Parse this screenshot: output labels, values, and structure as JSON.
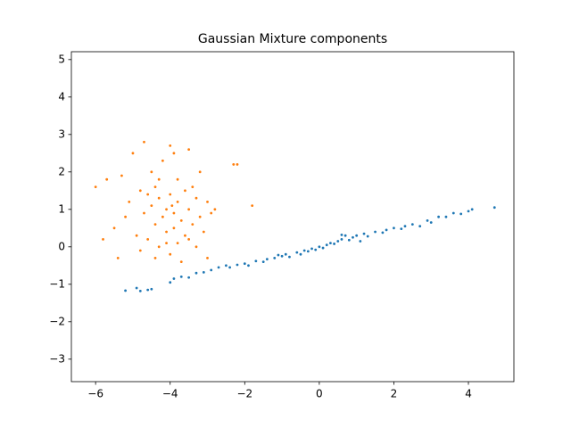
{
  "chart_data": {
    "type": "scatter",
    "title": "Gaussian Mixture components",
    "xlim": [
      -6.65,
      5.22
    ],
    "ylim": [
      -3.6,
      5.21
    ],
    "xticks": [
      {
        "value": -6,
        "label": "−6"
      },
      {
        "value": -4,
        "label": "−4"
      },
      {
        "value": -2,
        "label": "−2"
      },
      0,
      2,
      4
    ],
    "yticks": [
      {
        "value": -3,
        "label": "−3"
      },
      {
        "value": -2,
        "label": "−2"
      },
      {
        "value": -1,
        "label": "−1"
      },
      0,
      1,
      2,
      3,
      4,
      5
    ],
    "series": [
      {
        "color": "#1f77b4",
        "x": [
          -5.2,
          -4.9,
          -4.8,
          -4.6,
          -4.5,
          -4.0,
          -3.9,
          -3.7,
          -3.5,
          -3.3,
          -3.1,
          -2.9,
          -2.7,
          -2.5,
          -2.4,
          -2.2,
          -2.0,
          -1.9,
          -1.7,
          -1.5,
          -1.4,
          -1.2,
          -1.0,
          -0.9,
          -0.8,
          -0.6,
          -0.5,
          -0.4,
          -0.3,
          -0.2,
          -0.1,
          0.0,
          0.1,
          0.2,
          0.3,
          0.4,
          0.5,
          0.6,
          0.7,
          0.8,
          0.9,
          1.0,
          1.2,
          1.3,
          1.5,
          1.7,
          1.8,
          2.0,
          2.2,
          2.3,
          2.5,
          2.7,
          2.9,
          3.0,
          3.2,
          3.4,
          3.6,
          3.8,
          4.0,
          4.1,
          4.7,
          0.6,
          -1.1,
          1.1
        ],
        "y": [
          -1.17,
          -1.1,
          -1.18,
          -1.15,
          -1.13,
          -0.95,
          -0.85,
          -0.8,
          -0.82,
          -0.7,
          -0.68,
          -0.62,
          -0.55,
          -0.5,
          -0.55,
          -0.48,
          -0.45,
          -0.5,
          -0.38,
          -0.4,
          -0.33,
          -0.3,
          -0.25,
          -0.2,
          -0.27,
          -0.15,
          -0.2,
          -0.1,
          -0.12,
          -0.05,
          -0.08,
          0.0,
          -0.03,
          0.05,
          0.1,
          0.08,
          0.15,
          0.2,
          0.3,
          0.18,
          0.25,
          0.3,
          0.35,
          0.28,
          0.4,
          0.38,
          0.45,
          0.5,
          0.48,
          0.55,
          0.6,
          0.55,
          0.7,
          0.65,
          0.8,
          0.8,
          0.9,
          0.88,
          0.95,
          1.0,
          1.05,
          0.32,
          -0.22,
          0.15
        ]
      },
      {
        "color": "#ff7f0e",
        "x": [
          -6.0,
          -5.8,
          -5.7,
          -5.5,
          -5.4,
          -5.3,
          -5.2,
          -5.1,
          -5.0,
          -4.9,
          -4.8,
          -4.8,
          -4.7,
          -4.7,
          -4.6,
          -4.5,
          -4.5,
          -4.4,
          -4.4,
          -4.3,
          -4.3,
          -4.2,
          -4.2,
          -4.1,
          -4.1,
          -4.0,
          -4.0,
          -4.0,
          -3.9,
          -3.9,
          -3.9,
          -3.8,
          -3.8,
          -3.8,
          -3.7,
          -3.7,
          -3.6,
          -3.6,
          -3.5,
          -3.5,
          -3.4,
          -3.4,
          -3.3,
          -3.3,
          -3.2,
          -3.2,
          -3.1,
          -3.0,
          -3.0,
          -2.9,
          -2.8,
          -2.3,
          -2.2,
          -1.8,
          -4.6,
          -4.3,
          -4.1,
          -3.5,
          -4.4,
          -3.95
        ],
        "y": [
          1.6,
          0.2,
          1.8,
          0.5,
          -0.3,
          1.9,
          0.8,
          1.2,
          2.5,
          0.3,
          1.5,
          -0.1,
          2.8,
          0.9,
          0.2,
          1.1,
          2.0,
          0.6,
          1.6,
          0.0,
          1.3,
          0.8,
          2.3,
          0.4,
          1.0,
          2.7,
          1.4,
          -0.2,
          0.9,
          0.5,
          2.5,
          1.2,
          0.1,
          1.8,
          0.7,
          -0.4,
          1.5,
          0.3,
          2.6,
          1.0,
          0.6,
          1.6,
          0.0,
          1.3,
          2.0,
          0.8,
          0.4,
          1.2,
          -0.3,
          0.9,
          1.0,
          2.2,
          2.2,
          1.1,
          1.4,
          1.8,
          0.1,
          0.2,
          -0.3,
          1.1
        ]
      }
    ]
  }
}
